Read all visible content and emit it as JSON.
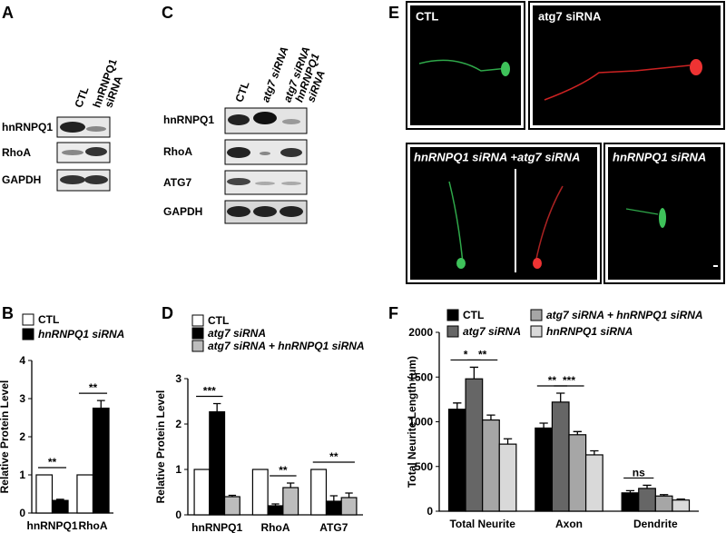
{
  "panels": {
    "A": {
      "letter": "A",
      "lanes": [
        [
          "CTL"
        ],
        [
          "hnRNPQ1",
          "siRNA"
        ]
      ],
      "rows": [
        "hnRNPQ1",
        "RhoA",
        "GAPDH"
      ]
    },
    "C": {
      "letter": "C",
      "lanes": [
        [
          "CTL"
        ],
        [
          "atg7 siRNA"
        ],
        [
          "atg7 siRNA",
          "hnRNPQ1",
          "siRNA"
        ]
      ],
      "rows": [
        "hnRNPQ1",
        "RhoA",
        "ATG7",
        "GAPDH"
      ]
    },
    "E": {
      "letter": "E",
      "images": [
        "CTL",
        "atg7 siRNA",
        "hnRNPQ1 siRNA +atg7 siRNA",
        "hnRNPQ1 siRNA"
      ]
    }
  },
  "chart_data": [
    {
      "type": "bar",
      "letter": "B",
      "ylabel": "Relative Protein Level",
      "categories": [
        "hnRNPQ1",
        "RhoA"
      ],
      "series": [
        {
          "name": "CTL",
          "color": "#ffffff",
          "values": [
            1,
            1
          ],
          "errors": [
            0,
            0
          ]
        },
        {
          "name": "hnRNPQ1 siRNA",
          "color": "#000000",
          "values": [
            0.33,
            2.75
          ],
          "errors": [
            0.03,
            0.2
          ]
        }
      ],
      "ylim": [
        0,
        4
      ],
      "yticks": [
        0,
        1,
        2,
        3,
        4
      ],
      "annotations": [
        "**",
        "**"
      ]
    },
    {
      "type": "bar",
      "letter": "D",
      "ylabel": "Relative Protein Level",
      "categories": [
        "hnRNPQ1",
        "RhoA",
        "ATG7"
      ],
      "series": [
        {
          "name": "CTL",
          "color": "#ffffff",
          "values": [
            1,
            1,
            1
          ],
          "errors": [
            0,
            0,
            0
          ]
        },
        {
          "name": "atg7 siRNA",
          "color": "#000000",
          "values": [
            2.27,
            0.2,
            0.3
          ],
          "errors": [
            0.18,
            0.04,
            0.12
          ]
        },
        {
          "name": "atg7 siRNA + hnRNPQ1 siRNA",
          "color": "#bdbdbd",
          "values": [
            0.4,
            0.6,
            0.38
          ],
          "errors": [
            0.03,
            0.1,
            0.1
          ]
        }
      ],
      "ylim": [
        0,
        3
      ],
      "yticks": [
        0,
        1,
        2,
        3
      ],
      "annotations": [
        "***",
        "**",
        "**"
      ]
    },
    {
      "type": "bar",
      "letter": "F",
      "ylabel": "Total Neurite Length (um)",
      "categories": [
        "Total Neurite",
        "Axon",
        "Dendrite"
      ],
      "series": [
        {
          "name": "CTL",
          "color": "#000000",
          "values": [
            1140,
            930,
            205
          ],
          "errors": [
            70,
            55,
            25
          ]
        },
        {
          "name": "atg7 siRNA",
          "color": "#666666",
          "values": [
            1480,
            1220,
            255
          ],
          "errors": [
            130,
            100,
            35
          ]
        },
        {
          "name": "atg7 siRNA + hnRNPQ1 siRNA",
          "color": "#a6a6a6",
          "values": [
            1020,
            855,
            170
          ],
          "errors": [
            55,
            35,
            15
          ]
        },
        {
          "name": "hnRNPQ1 siRNA",
          "color": "#d9d9d9",
          "values": [
            750,
            630,
            125
          ],
          "errors": [
            60,
            45,
            10
          ]
        }
      ],
      "ylim": [
        0,
        2000
      ],
      "yticks": [
        0,
        500,
        1000,
        1500,
        2000
      ],
      "annotations": [
        "*",
        "**",
        "**",
        "***",
        "ns"
      ]
    }
  ]
}
